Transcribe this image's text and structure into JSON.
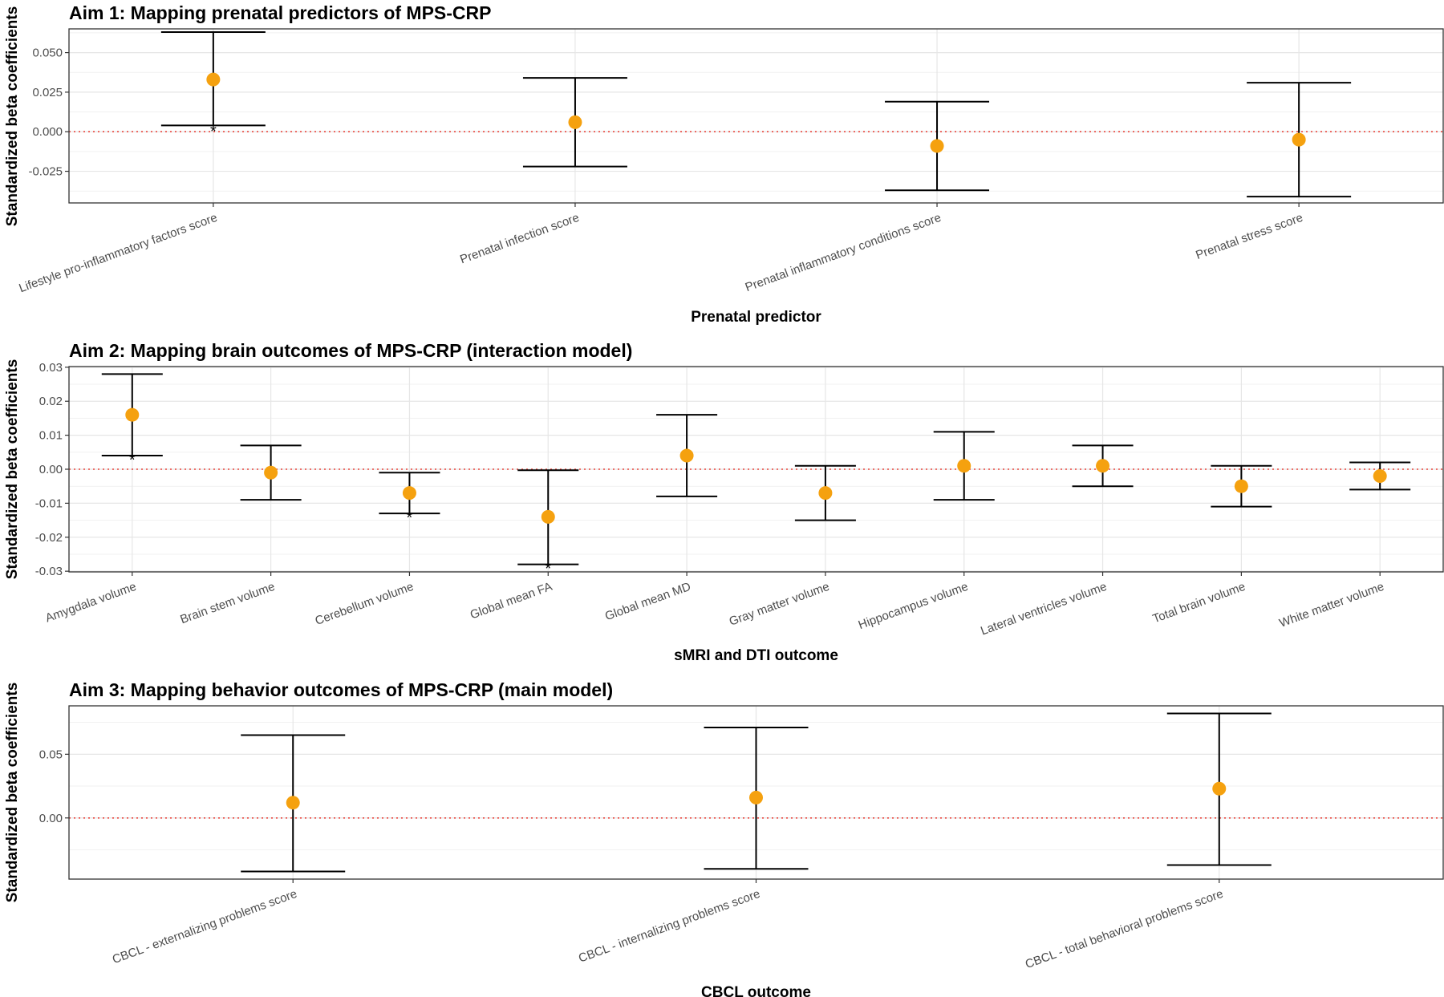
{
  "chart_data": [
    {
      "type": "scatter",
      "title": "Aim 1: Mapping prenatal predictors of MPS-CRP",
      "xlabel": "Prenatal predictor",
      "ylabel": "Standardized beta coefficients",
      "ylim": [
        -0.045,
        0.065
      ],
      "yticks": [
        -0.025,
        0.0,
        0.025,
        0.05
      ],
      "ytick_labels": [
        "-0.025",
        "0.000",
        "0.025",
        "0.050"
      ],
      "reference_line": 0,
      "grid": true,
      "categories": [
        "Lifestyle pro-inflammatory factors score",
        "Prenatal infection score",
        "Prenatal inflammatory conditions score",
        "Prenatal stress score"
      ],
      "estimate": [
        0.033,
        0.006,
        -0.009,
        -0.005
      ],
      "ci_lower": [
        0.004,
        -0.022,
        -0.037,
        -0.041
      ],
      "ci_upper": [
        0.063,
        0.034,
        0.019,
        0.031
      ],
      "significant": [
        true,
        false,
        false,
        false
      ],
      "significance_marker": "*",
      "point_color": "#F5A10F",
      "ref_line_color": "#E8453C"
    },
    {
      "type": "scatter",
      "title": "Aim 2: Mapping brain outcomes of MPS-CRP (interaction model)",
      "xlabel": "sMRI and DTI outcome",
      "ylabel": "Standardized beta coefficients",
      "ylim": [
        -0.0302,
        0.0302
      ],
      "yticks": [
        -0.03,
        -0.02,
        -0.01,
        0.0,
        0.01,
        0.02,
        0.03
      ],
      "ytick_labels": [
        "-0.03",
        "-0.02",
        "-0.01",
        "0.00",
        "0.01",
        "0.02",
        "0.03"
      ],
      "reference_line": 0,
      "grid": true,
      "categories": [
        "Amygdala volume",
        "Brain stem volume",
        "Cerebellum volume",
        "Global mean FA",
        "Global mean MD",
        "Gray matter volume",
        "Hippocampus volume",
        "Lateral ventricles volume",
        "Total brain volume",
        "White matter volume"
      ],
      "estimate": [
        0.016,
        -0.001,
        -0.007,
        -0.014,
        0.004,
        -0.007,
        0.001,
        0.001,
        -0.005,
        -0.002
      ],
      "ci_lower": [
        0.004,
        -0.009,
        -0.013,
        -0.028,
        -0.008,
        -0.015,
        -0.009,
        -0.005,
        -0.011,
        -0.006
      ],
      "ci_upper": [
        0.028,
        0.007,
        -0.001,
        -0.0003,
        0.016,
        0.001,
        0.011,
        0.007,
        0.001,
        0.002
      ],
      "significant": [
        true,
        false,
        true,
        true,
        false,
        false,
        false,
        false,
        false,
        false
      ],
      "significance_marker": "*",
      "point_color": "#F5A10F",
      "ref_line_color": "#E8453C"
    },
    {
      "type": "scatter",
      "title": "Aim 3: Mapping behavior outcomes of MPS-CRP (main model)",
      "xlabel": "CBCL outcome",
      "ylabel": "Standardized beta coefficients",
      "ylim": [
        -0.048,
        0.088
      ],
      "yticks": [
        0.0,
        0.05
      ],
      "ytick_labels": [
        "0.00",
        "0.05"
      ],
      "reference_line": 0,
      "grid": true,
      "categories": [
        "CBCL - externalizing problems score",
        "CBCL - internalizing problems score",
        "CBCL - total behavioral problems score"
      ],
      "estimate": [
        0.012,
        0.016,
        0.023
      ],
      "ci_lower": [
        -0.042,
        -0.04,
        -0.037
      ],
      "ci_upper": [
        0.065,
        0.071,
        0.082
      ],
      "significant": [
        false,
        false,
        false
      ],
      "significance_marker": "*",
      "point_color": "#F5A10F",
      "ref_line_color": "#E8453C"
    }
  ]
}
